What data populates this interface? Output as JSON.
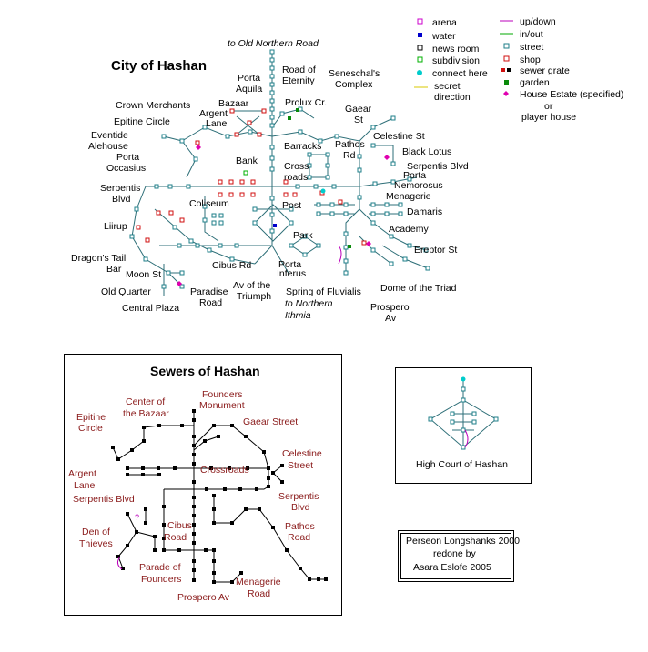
{
  "colors": {
    "street": "#1f7f8a",
    "shop": "#d01010",
    "garden": "#0a8a0a",
    "water": "#0000cc",
    "arena": "#cc00cc",
    "updown": "#bb00bb",
    "inout": "#00aa00",
    "subdivision": "#00b000",
    "connect": "#00cccc",
    "secret": "#d8c800",
    "house": "#e000b0",
    "sewer_label": "#8a1a1a"
  },
  "legend": {
    "arena": "arena",
    "water": "water",
    "news_room": "news room",
    "subdivision": "subdivision",
    "connect_here": "connect here",
    "secret_direction_1": "secret",
    "secret_direction_2": "direction",
    "up_down": "up/down",
    "in_out": "in/out",
    "street": "street",
    "shop": "shop",
    "sewer_grate": "sewer grate",
    "garden": "garden",
    "house_estate": "House Estate (specified)",
    "or": "or",
    "player_house": "player house"
  },
  "city": {
    "title": "City of Hashan",
    "to_old_northern_road": "to Old Northern Road",
    "to_northern_1": "to Northern",
    "to_northern_2": "Ithmia",
    "labels": {
      "road_of_eternity_1": "Road of",
      "road_of_eternity_2": "Eternity",
      "porta_aquila_1": "Porta",
      "porta_aquila_2": "Aquila",
      "seneschal_1": "Seneschal's",
      "seneschal_2": "Complex",
      "prolux": "Prolux Cr.",
      "bazaar": "Bazaar",
      "crown_merchants": "Crown Merchants",
      "argent_lane_1": "Argent",
      "argent_lane_2": "Lane",
      "gaear_st_1": "Gaear",
      "gaear_st_2": "St",
      "epitine_circle": "Epitine Circle",
      "eventide_1": "Eventide",
      "eventide_2": "Alehouse",
      "celestine_st": "Celestine St",
      "barracks": "Barracks",
      "pathos_rd_1": "Pathos",
      "pathos_rd_2": "Rd",
      "black_lotus": "Black Lotus",
      "porta_occasius_1": "Porta",
      "porta_occasius_2": "Occasius",
      "bank": "Bank",
      "cross_roads_1": "Cross",
      "cross_roads_2": "roads",
      "serpentis_blvd_e": "Serpentis Blvd",
      "porta_nemorosus_1": "Porta",
      "porta_nemorosus_2": "Nemorosus",
      "serpentis_blvd_w1": "Serpentis",
      "serpentis_blvd_w2": "Blvd",
      "menagerie": "Menagerie",
      "coliseum": "Coliseum",
      "post": "Post",
      "damaris": "Damaris",
      "liirup": "Liirup",
      "academy": "Academy",
      "park": "Park",
      "ereptor_st": "Ereptor St",
      "dragons_tail_1": "Dragon's Tail",
      "dragons_tail_2": "Bar",
      "cibus_rd": "Cibus Rd",
      "porta_inferus_1": "Porta",
      "porta_inferus_2": "Inferus",
      "moon_st": "Moon St",
      "old_quarter": "Old Quarter",
      "av_triumph_1": "Av of the",
      "av_triumph_2": "Triumph",
      "spring": "Spring of Fluvialis",
      "dome": "Dome of the Triad",
      "paradise_1": "Paradise",
      "paradise_2": "Road",
      "central_plaza": "Central Plaza",
      "prospero_1": "Prospero",
      "prospero_2": "Av"
    }
  },
  "sewers": {
    "title": "Sewers of Hashan",
    "labels": {
      "center_bazaar_1": "Center of",
      "center_bazaar_2": "the Bazaar",
      "founders_monument_1": "Founders",
      "founders_monument_2": "Monument",
      "epitine_1": "Epitine",
      "epitine_2": "Circle",
      "gaear_street": "Gaear Street",
      "celestine_1": "Celestine",
      "celestine_2": "Street",
      "argent_1": "Argent",
      "argent_2": "Lane",
      "crossroads": "Crossroads",
      "serpentis_w": "Serpentis Blvd",
      "serpentis_e1": "Serpentis",
      "serpentis_e2": "Blvd",
      "den_1": "Den of",
      "den_2": "Thieves",
      "cibus_1": "Cibus",
      "cibus_2": "Road",
      "pathos_1": "Pathos",
      "pathos_2": "Road",
      "parade_1": "Parade of",
      "parade_2": "Founders",
      "menagerie_1": "Menagerie",
      "menagerie_2": "Road",
      "prospero": "Prospero Av",
      "secret_mark": "?"
    }
  },
  "court": {
    "label": "High Court of Hashan"
  },
  "credits": {
    "line1": "Perseon Longshanks 2000",
    "line2": "redone by",
    "line3": "Asara Eslofe 2005"
  }
}
